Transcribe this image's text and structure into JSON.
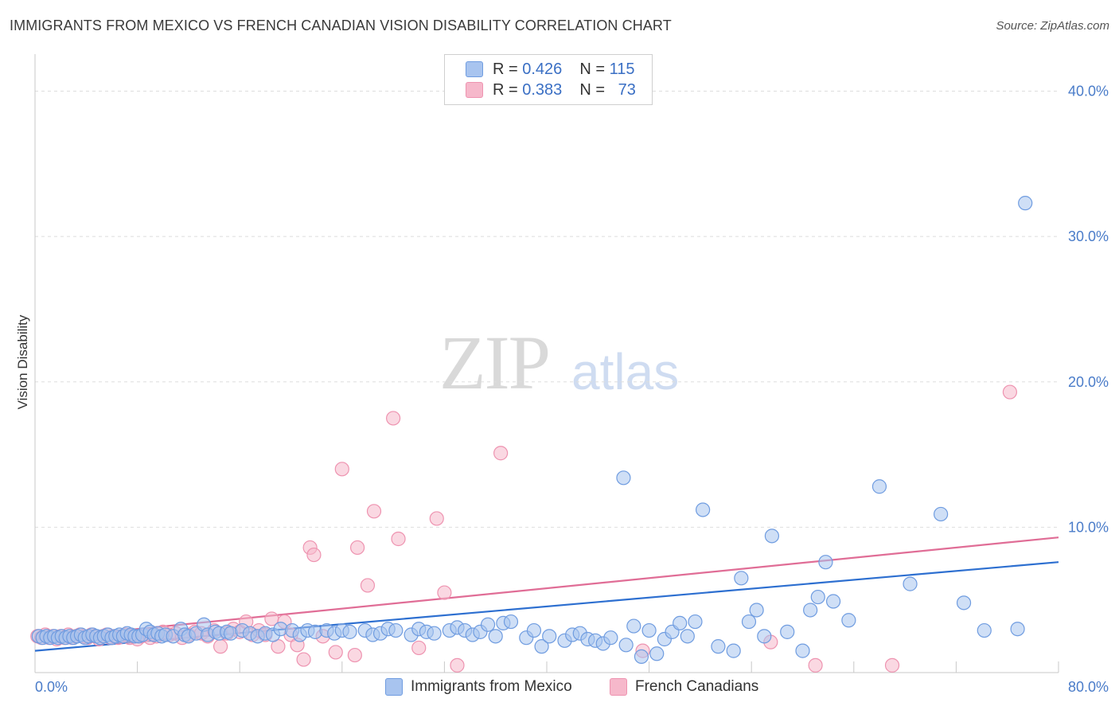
{
  "title": "IMMIGRANTS FROM MEXICO VS FRENCH CANADIAN VISION DISABILITY CORRELATION CHART",
  "source": "Source: ZipAtlas.com",
  "watermark": {
    "zip": "ZIP",
    "atlas": "atlas"
  },
  "legend": {
    "r_label": "R =",
    "n_label": "N =",
    "rows": [
      {
        "r": "0.426",
        "n": "115",
        "color": "#a8c4ef"
      },
      {
        "r": "0.383",
        "n": "73",
        "color": "#f6b8cb"
      }
    ]
  },
  "bottom_legend": [
    {
      "label": "Immigrants from Mexico",
      "color": "#a8c4ef"
    },
    {
      "label": "French Canadians",
      "color": "#f6b8cb"
    }
  ],
  "chart_data": {
    "type": "scatter",
    "title": "IMMIGRANTS FROM MEXICO VS FRENCH CANADIAN VISION DISABILITY CORRELATION CHART",
    "xlabel": "",
    "ylabel": "Vision Disability",
    "xlim": [
      0,
      80
    ],
    "ylim": [
      0,
      42
    ],
    "x_tick_labels": [
      "0.0%",
      "80.0%"
    ],
    "y_ticks": [
      10,
      20,
      30,
      40
    ],
    "y_tick_labels": [
      "10.0%",
      "20.0%",
      "30.0%",
      "40.0%"
    ],
    "grid": true,
    "series": [
      {
        "name": "Immigrants from Mexico",
        "color": "#6f9ce0",
        "fill": "#a8c4ef",
        "trend": {
          "x": [
            0,
            80
          ],
          "y": [
            1.5,
            7.6
          ],
          "color": "#2d6fd0"
        },
        "points": [
          [
            0.3,
            2.5
          ],
          [
            0.6,
            2.4
          ],
          [
            0.9,
            2.5
          ],
          [
            1.2,
            2.4
          ],
          [
            1.5,
            2.5
          ],
          [
            1.8,
            2.4
          ],
          [
            2.1,
            2.5
          ],
          [
            2.4,
            2.4
          ],
          [
            2.7,
            2.5
          ],
          [
            3.0,
            2.4
          ],
          [
            3.3,
            2.5
          ],
          [
            3.6,
            2.6
          ],
          [
            3.9,
            2.4
          ],
          [
            4.2,
            2.5
          ],
          [
            4.5,
            2.6
          ],
          [
            4.8,
            2.5
          ],
          [
            5.1,
            2.4
          ],
          [
            5.4,
            2.5
          ],
          [
            5.7,
            2.6
          ],
          [
            6.0,
            2.4
          ],
          [
            6.3,
            2.5
          ],
          [
            6.6,
            2.6
          ],
          [
            6.9,
            2.5
          ],
          [
            7.2,
            2.7
          ],
          [
            7.5,
            2.6
          ],
          [
            7.8,
            2.5
          ],
          [
            8.1,
            2.5
          ],
          [
            8.4,
            2.6
          ],
          [
            8.7,
            3.0
          ],
          [
            9.0,
            2.8
          ],
          [
            9.3,
            2.6
          ],
          [
            9.6,
            2.7
          ],
          [
            9.9,
            2.5
          ],
          [
            10.2,
            2.6
          ],
          [
            10.8,
            2.5
          ],
          [
            11.4,
            3.0
          ],
          [
            11.7,
            2.6
          ],
          [
            12.0,
            2.5
          ],
          [
            12.6,
            2.7
          ],
          [
            13.2,
            3.3
          ],
          [
            13.5,
            2.6
          ],
          [
            14.1,
            2.8
          ],
          [
            14.4,
            2.7
          ],
          [
            15.0,
            2.8
          ],
          [
            15.3,
            2.7
          ],
          [
            16.2,
            2.9
          ],
          [
            16.8,
            2.7
          ],
          [
            17.4,
            2.5
          ],
          [
            18.0,
            2.7
          ],
          [
            18.6,
            2.6
          ],
          [
            19.2,
            3.0
          ],
          [
            20.1,
            2.9
          ],
          [
            20.7,
            2.6
          ],
          [
            21.3,
            2.9
          ],
          [
            21.9,
            2.8
          ],
          [
            22.8,
            2.9
          ],
          [
            23.4,
            2.7
          ],
          [
            24.0,
            2.9
          ],
          [
            24.6,
            2.8
          ],
          [
            25.8,
            2.9
          ],
          [
            26.4,
            2.6
          ],
          [
            27.0,
            2.7
          ],
          [
            27.6,
            3.0
          ],
          [
            28.2,
            2.9
          ],
          [
            29.4,
            2.6
          ],
          [
            30.0,
            3.0
          ],
          [
            30.6,
            2.8
          ],
          [
            31.2,
            2.7
          ],
          [
            32.4,
            2.9
          ],
          [
            33.0,
            3.1
          ],
          [
            33.6,
            2.9
          ],
          [
            34.2,
            2.6
          ],
          [
            34.8,
            2.8
          ],
          [
            35.4,
            3.3
          ],
          [
            36.0,
            2.5
          ],
          [
            36.6,
            3.4
          ],
          [
            37.2,
            3.5
          ],
          [
            38.4,
            2.4
          ],
          [
            39.0,
            2.9
          ],
          [
            39.6,
            1.8
          ],
          [
            40.2,
            2.5
          ],
          [
            41.4,
            2.2
          ],
          [
            42.0,
            2.6
          ],
          [
            42.6,
            2.7
          ],
          [
            43.2,
            2.3
          ],
          [
            43.8,
            2.2
          ],
          [
            44.4,
            2.0
          ],
          [
            45.0,
            2.4
          ],
          [
            46.2,
            1.9
          ],
          [
            46.8,
            3.2
          ],
          [
            47.4,
            1.1
          ],
          [
            48.0,
            2.9
          ],
          [
            48.6,
            1.3
          ],
          [
            49.2,
            2.3
          ],
          [
            49.8,
            2.8
          ],
          [
            50.4,
            3.4
          ],
          [
            51.0,
            2.5
          ],
          [
            51.6,
            3.5
          ],
          [
            52.2,
            11.2
          ],
          [
            53.4,
            1.8
          ],
          [
            54.6,
            1.5
          ],
          [
            55.2,
            6.5
          ],
          [
            55.8,
            3.5
          ],
          [
            56.4,
            4.3
          ],
          [
            57.0,
            2.5
          ],
          [
            57.6,
            9.4
          ],
          [
            58.8,
            2.8
          ],
          [
            60.0,
            1.5
          ],
          [
            60.6,
            4.3
          ],
          [
            61.2,
            5.2
          ],
          [
            61.8,
            7.6
          ],
          [
            62.4,
            4.9
          ],
          [
            63.6,
            3.6
          ],
          [
            66.0,
            12.8
          ],
          [
            68.4,
            6.1
          ],
          [
            70.8,
            10.9
          ],
          [
            72.6,
            4.8
          ],
          [
            74.2,
            2.9
          ],
          [
            76.8,
            3.0
          ],
          [
            77.4,
            32.3
          ],
          [
            46.0,
            13.4
          ]
        ]
      },
      {
        "name": "French Canadians",
        "color": "#ee93b0",
        "fill": "#f6b8cb",
        "trend": {
          "x": [
            0,
            80
          ],
          "y": [
            2.3,
            9.3
          ],
          "color": "#e06d96"
        },
        "points": [
          [
            0.2,
            2.5
          ],
          [
            0.5,
            2.4
          ],
          [
            0.8,
            2.6
          ],
          [
            1.1,
            2.4
          ],
          [
            1.4,
            2.5
          ],
          [
            1.7,
            2.3
          ],
          [
            2.0,
            2.5
          ],
          [
            2.3,
            2.4
          ],
          [
            2.6,
            2.6
          ],
          [
            2.9,
            2.4
          ],
          [
            3.2,
            2.5
          ],
          [
            3.5,
            2.6
          ],
          [
            3.8,
            2.5
          ],
          [
            4.1,
            2.4
          ],
          [
            4.4,
            2.6
          ],
          [
            4.7,
            2.5
          ],
          [
            5.0,
            2.3
          ],
          [
            5.3,
            2.5
          ],
          [
            5.6,
            2.6
          ],
          [
            5.9,
            2.4
          ],
          [
            6.2,
            2.5
          ],
          [
            6.5,
            2.4
          ],
          [
            6.8,
            2.5
          ],
          [
            7.1,
            2.6
          ],
          [
            7.4,
            2.4
          ],
          [
            7.7,
            2.5
          ],
          [
            8.0,
            2.3
          ],
          [
            8.3,
            2.5
          ],
          [
            8.6,
            2.6
          ],
          [
            9.0,
            2.4
          ],
          [
            9.5,
            2.5
          ],
          [
            10.0,
            2.8
          ],
          [
            10.5,
            2.6
          ],
          [
            11.0,
            2.7
          ],
          [
            11.5,
            2.4
          ],
          [
            12.0,
            2.6
          ],
          [
            12.5,
            2.8
          ],
          [
            13.0,
            2.7
          ],
          [
            13.5,
            2.5
          ],
          [
            14.0,
            2.9
          ],
          [
            14.5,
            1.8
          ],
          [
            15.0,
            2.7
          ],
          [
            15.5,
            3.0
          ],
          [
            16.0,
            2.8
          ],
          [
            16.5,
            3.5
          ],
          [
            17.0,
            2.6
          ],
          [
            17.5,
            2.9
          ],
          [
            18.0,
            2.6
          ],
          [
            18.5,
            3.7
          ],
          [
            19.0,
            1.8
          ],
          [
            19.5,
            3.5
          ],
          [
            20.0,
            2.6
          ],
          [
            20.5,
            1.9
          ],
          [
            21.0,
            0.9
          ],
          [
            21.5,
            8.6
          ],
          [
            21.8,
            8.1
          ],
          [
            22.5,
            2.5
          ],
          [
            23.5,
            1.4
          ],
          [
            24.0,
            14.0
          ],
          [
            25.0,
            1.2
          ],
          [
            25.2,
            8.6
          ],
          [
            26.0,
            6.0
          ],
          [
            26.5,
            11.1
          ],
          [
            28.0,
            17.5
          ],
          [
            28.4,
            9.2
          ],
          [
            30.0,
            1.7
          ],
          [
            31.4,
            10.6
          ],
          [
            32.0,
            5.5
          ],
          [
            33.0,
            0.5
          ],
          [
            36.4,
            15.1
          ],
          [
            47.5,
            1.5
          ],
          [
            57.5,
            2.1
          ],
          [
            61.0,
            0.5
          ],
          [
            67.0,
            0.5
          ],
          [
            76.2,
            19.3
          ]
        ]
      }
    ]
  }
}
